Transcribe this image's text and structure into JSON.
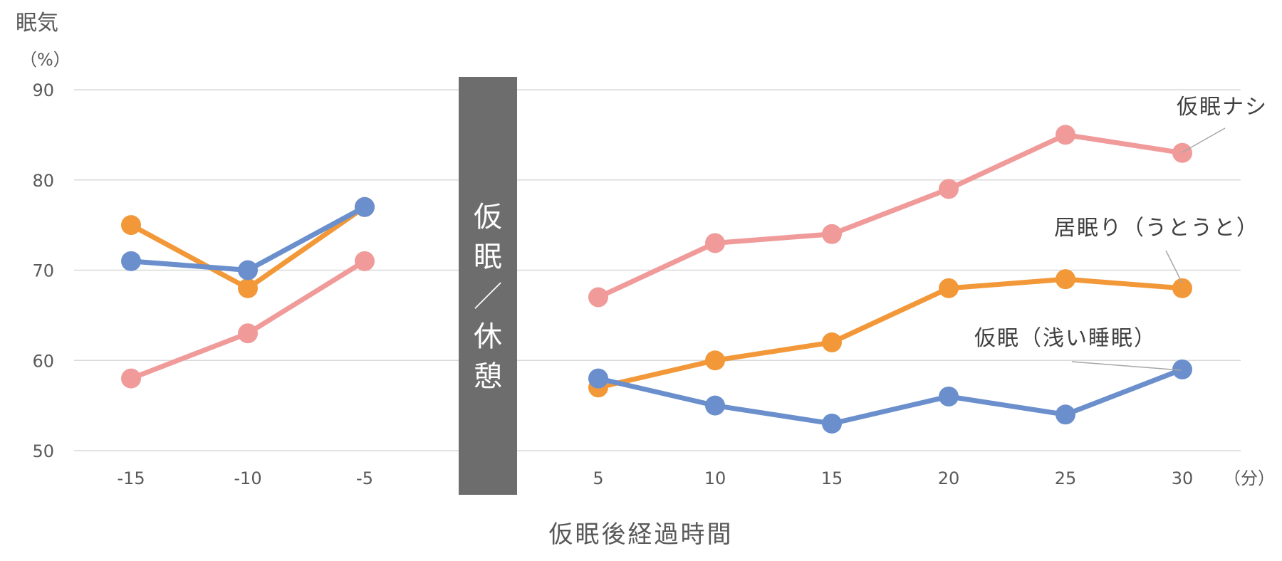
{
  "chart_data": {
    "type": "line",
    "ylabel": "眠気",
    "yunit": "（%）",
    "xlabel": "仮眠後経過時間",
    "xunit": "（分）",
    "ylim": [
      50,
      90
    ],
    "yticks": [
      50,
      60,
      70,
      80,
      90
    ],
    "xticks": [
      -15,
      -10,
      -5,
      5,
      10,
      15,
      20,
      25,
      30
    ],
    "grid": true,
    "band": {
      "label": "仮眠／休憩",
      "color": "#6d6d6d"
    },
    "series": [
      {
        "name": "仮眠ナシ",
        "color": "#f09a9a",
        "x": [
          -15,
          -10,
          -5,
          5,
          10,
          15,
          20,
          25,
          30
        ],
        "y": [
          58,
          63,
          71,
          67,
          73,
          74,
          79,
          85,
          83
        ]
      },
      {
        "name": "居眠り（うとうと）",
        "color": "#f29838",
        "x": [
          -15,
          -10,
          -5,
          5,
          10,
          15,
          20,
          25,
          30
        ],
        "y": [
          75,
          68,
          77,
          57,
          60,
          62,
          68,
          69,
          68
        ]
      },
      {
        "name": "仮眠（浅い睡眠）",
        "color": "#6a8fcc",
        "x": [
          -15,
          -10,
          -5,
          5,
          10,
          15,
          20,
          25,
          30
        ],
        "y": [
          71,
          70,
          77,
          58,
          55,
          53,
          56,
          54,
          59
        ]
      }
    ]
  }
}
